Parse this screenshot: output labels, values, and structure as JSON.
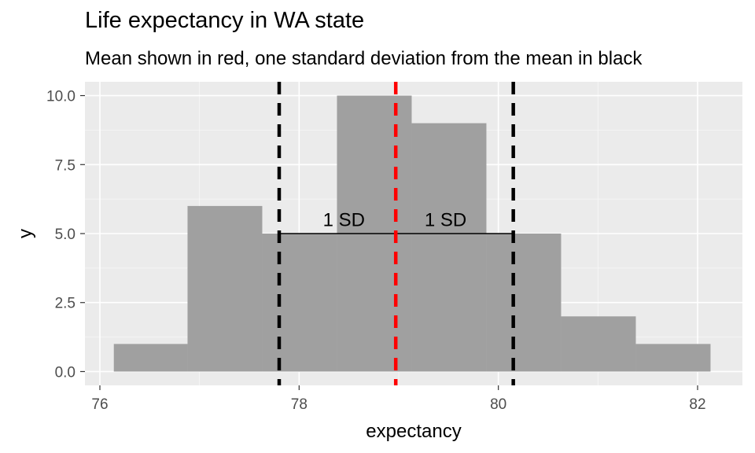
{
  "chart_data": {
    "type": "bar",
    "title": "Life expectancy in WA state",
    "subtitle": "Mean shown in red, one standard deviation from the mean in black",
    "xlabel": "expectancy",
    "ylabel": "y",
    "xlim": [
      75.85,
      82.45
    ],
    "ylim": [
      -0.5,
      10.5
    ],
    "x_ticks": [
      76,
      78,
      80,
      82
    ],
    "y_ticks": [
      0,
      2.5,
      5,
      7.5,
      10
    ],
    "x_tick_labels": [
      "76",
      "78",
      "80",
      "82"
    ],
    "y_tick_labels": [
      "0.0",
      "2.5",
      "5.0",
      "7.5",
      "10.0"
    ],
    "grid": true,
    "bins": [
      {
        "x0": 76.14,
        "x1": 76.88,
        "count": 1
      },
      {
        "x0": 76.88,
        "x1": 77.63,
        "count": 6
      },
      {
        "x0": 77.63,
        "x1": 78.38,
        "count": 5
      },
      {
        "x0": 78.38,
        "x1": 79.13,
        "count": 10
      },
      {
        "x0": 79.13,
        "x1": 79.88,
        "count": 9
      },
      {
        "x0": 79.88,
        "x1": 80.63,
        "count": 5
      },
      {
        "x0": 80.63,
        "x1": 81.38,
        "count": 2
      },
      {
        "x0": 81.38,
        "x1": 82.13,
        "count": 1
      }
    ],
    "mean": 78.97,
    "sd_lines": [
      77.8,
      80.15
    ],
    "sd_segment_y": 5,
    "sd_labels": [
      {
        "text": "1 SD",
        "x": 78.45,
        "y": 5.5
      },
      {
        "text": "1 SD",
        "x": 79.47,
        "y": 5.5
      }
    ],
    "colors": {
      "panel": "#ebebeb",
      "grid_major": "#ffffff",
      "bars": "#a0a0a0",
      "mean_line": "#ff0000",
      "sd_line": "#000000"
    }
  }
}
